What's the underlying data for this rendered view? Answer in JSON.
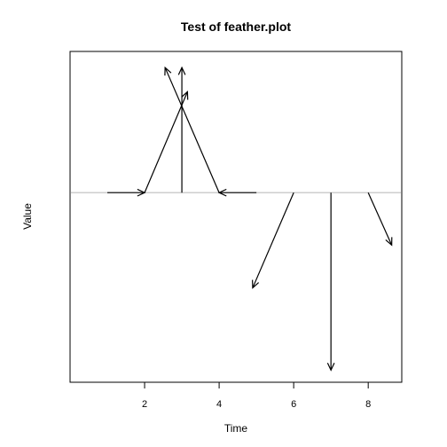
{
  "chart_data": {
    "type": "feather",
    "title": "Test of feather.plot",
    "xlabel": "Time",
    "ylabel": "Value",
    "xlim": [
      0.0,
      8.9
    ],
    "ylim": [
      -2.35,
      1.75
    ],
    "xticks": [
      2,
      4,
      6,
      8
    ],
    "show_y_ticks": false,
    "baseline": 0,
    "feathers": [
      {
        "x": 1,
        "u": 1.0,
        "v": 0.0
      },
      {
        "x": 2,
        "u": 1.15,
        "v": 1.25
      },
      {
        "x": 3,
        "u": 0.0,
        "v": 1.55
      },
      {
        "x": 4,
        "u": -1.45,
        "v": 1.55
      },
      {
        "x": 5,
        "u": -1.0,
        "v": 0.0
      },
      {
        "x": 6,
        "u": -1.1,
        "v": -1.18
      },
      {
        "x": 7,
        "u": 0.0,
        "v": -2.2
      },
      {
        "x": 8,
        "u": 0.63,
        "v": -0.65
      }
    ],
    "colors": {
      "arrows": "#000000",
      "baseline": "#bebebe",
      "frame": "#000000"
    }
  }
}
